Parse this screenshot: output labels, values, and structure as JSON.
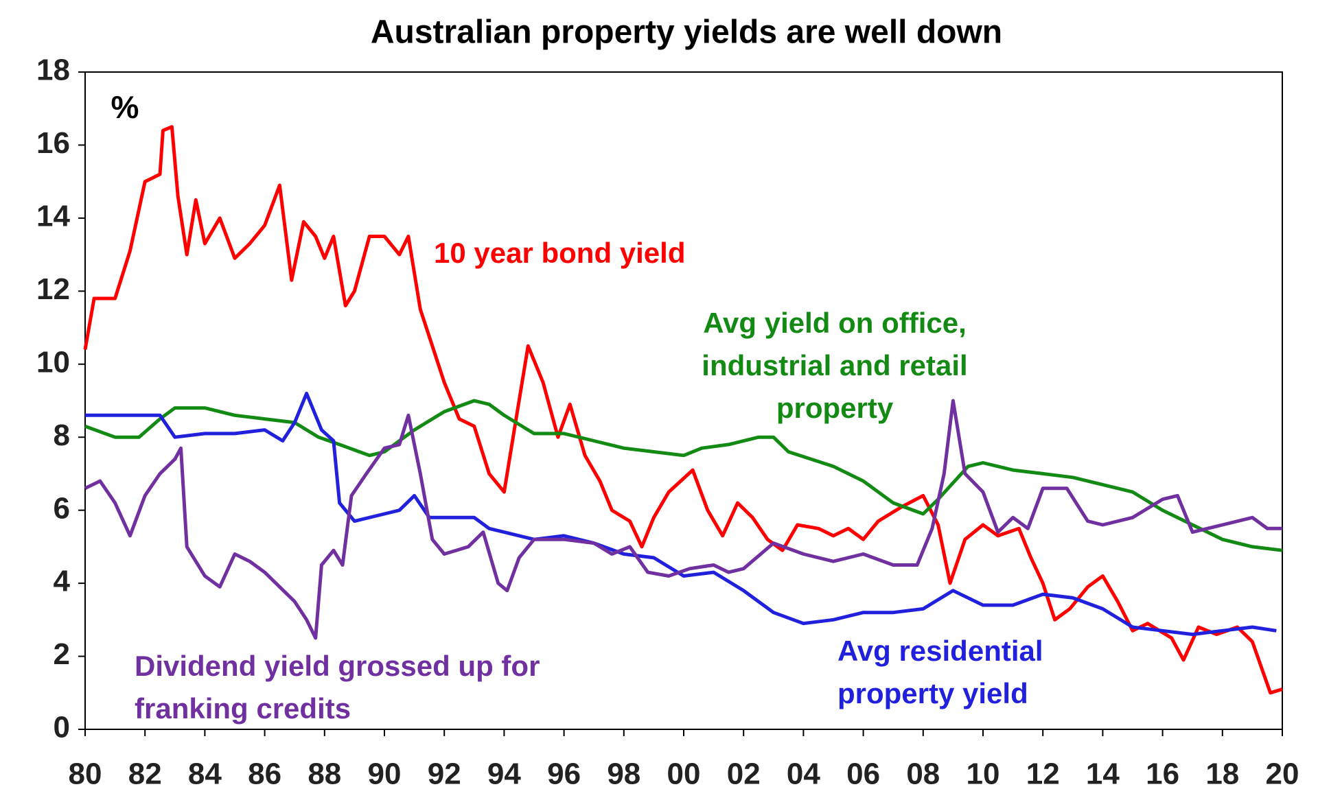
{
  "chart_data": {
    "type": "line",
    "title": "Australian property yields are well down",
    "ylabel": "%",
    "xlim": [
      1980,
      2020
    ],
    "xticks": [
      {
        "value": 1980,
        "label": "80"
      },
      {
        "value": 1982,
        "label": "82"
      },
      {
        "value": 1984,
        "label": "84"
      },
      {
        "value": 1986,
        "label": "86"
      },
      {
        "value": 1988,
        "label": "88"
      },
      {
        "value": 1990,
        "label": "90"
      },
      {
        "value": 1992,
        "label": "92"
      },
      {
        "value": 1994,
        "label": "94"
      },
      {
        "value": 1996,
        "label": "96"
      },
      {
        "value": 1998,
        "label": "98"
      },
      {
        "value": 2000,
        "label": "00"
      },
      {
        "value": 2002,
        "label": "02"
      },
      {
        "value": 2004,
        "label": "04"
      },
      {
        "value": 2006,
        "label": "06"
      },
      {
        "value": 2008,
        "label": "08"
      },
      {
        "value": 2010,
        "label": "10"
      },
      {
        "value": 2012,
        "label": "12"
      },
      {
        "value": 2014,
        "label": "14"
      },
      {
        "value": 2016,
        "label": "16"
      },
      {
        "value": 2018,
        "label": "18"
      },
      {
        "value": 2020,
        "label": "20"
      }
    ],
    "ylim": [
      0,
      18
    ],
    "yticks": [
      0,
      2,
      4,
      6,
      8,
      10,
      12,
      14,
      16,
      18
    ],
    "series": [
      {
        "name": "10 year bond yield",
        "color": "#ff0000",
        "x": [
          1980,
          1980.3,
          1981,
          1981.5,
          1982,
          1982.5,
          1982.6,
          1982.9,
          1983.1,
          1983.4,
          1983.7,
          1984,
          1984.5,
          1985,
          1985.5,
          1986,
          1986.5,
          1986.9,
          1987.3,
          1987.7,
          1988,
          1988.3,
          1988.7,
          1989,
          1989.5,
          1990,
          1990.5,
          1990.8,
          1991.2,
          1991.6,
          1992,
          1992.5,
          1993,
          1993.5,
          1994,
          1994.4,
          1994.8,
          1995.3,
          1995.8,
          1996.2,
          1996.7,
          1997.2,
          1997.6,
          1998.2,
          1998.6,
          1999,
          1999.5,
          2000.3,
          2000.8,
          2001.3,
          2001.8,
          2002.3,
          2002.8,
          2003.3,
          2003.8,
          2004.5,
          2005,
          2005.5,
          2006,
          2006.5,
          2007.3,
          2008,
          2008.5,
          2008.9,
          2009.4,
          2010,
          2010.5,
          2011.2,
          2011.6,
          2012,
          2012.4,
          2012.9,
          2013.5,
          2014,
          2014.5,
          2015,
          2015.5,
          2016.3,
          2016.7,
          2017.2,
          2017.8,
          2018.5,
          2019,
          2019.6,
          2020
        ],
        "values": [
          10.4,
          11.8,
          11.8,
          13.1,
          15,
          15.2,
          16.4,
          16.5,
          14.6,
          13,
          14.5,
          13.3,
          14,
          12.9,
          13.3,
          13.8,
          14.9,
          12.3,
          13.9,
          13.5,
          12.9,
          13.5,
          11.6,
          12,
          13.5,
          13.5,
          13,
          13.5,
          11.5,
          10.5,
          9.5,
          8.5,
          8.3,
          7,
          6.5,
          8.5,
          10.5,
          9.5,
          8,
          8.9,
          7.5,
          6.8,
          6,
          5.7,
          5,
          5.8,
          6.5,
          7.1,
          6,
          5.3,
          6.2,
          5.8,
          5.2,
          4.9,
          5.6,
          5.5,
          5.3,
          5.5,
          5.2,
          5.7,
          6.1,
          6.4,
          5.6,
          4,
          5.2,
          5.6,
          5.3,
          5.5,
          4.7,
          4,
          3,
          3.3,
          3.9,
          4.2,
          3.5,
          2.7,
          2.9,
          2.5,
          1.9,
          2.8,
          2.6,
          2.8,
          2.4,
          1,
          1.1
        ]
      },
      {
        "name": "Avg yield on office, industrial and retail property",
        "color": "#138a13",
        "x": [
          1980,
          1981,
          1981.8,
          1982.5,
          1983,
          1984,
          1985,
          1986,
          1987,
          1987.8,
          1988.5,
          1989.5,
          1990,
          1991,
          1992,
          1993,
          1993.5,
          1994,
          1995,
          1996,
          1997,
          1998,
          1999,
          2000,
          2000.6,
          2001.5,
          2002.5,
          2003,
          2003.5,
          2005,
          2006,
          2007,
          2008,
          2008.5,
          2009.5,
          2010,
          2011,
          2012,
          2013,
          2014,
          2015,
          2016,
          2017,
          2018,
          2019,
          2020
        ],
        "values": [
          8.3,
          8,
          8,
          8.5,
          8.8,
          8.8,
          8.6,
          8.5,
          8.4,
          8,
          7.8,
          7.5,
          7.6,
          8.2,
          8.7,
          9,
          8.9,
          8.6,
          8.1,
          8.1,
          7.9,
          7.7,
          7.6,
          7.5,
          7.7,
          7.8,
          8,
          8,
          7.6,
          7.2,
          6.8,
          6.2,
          5.9,
          6.3,
          7.2,
          7.3,
          7.1,
          7,
          6.9,
          6.7,
          6.5,
          6,
          5.6,
          5.2,
          5,
          4.9
        ]
      },
      {
        "name": "Avg residential property yield",
        "color": "#2121dd",
        "x": [
          1980,
          1982.5,
          1983,
          1984,
          1985,
          1986,
          1986.6,
          1987,
          1987.4,
          1987.9,
          1988.3,
          1988.5,
          1989,
          1990,
          1990.5,
          1991,
          1991.5,
          1992,
          1993,
          1993.5,
          1994,
          1995,
          1996,
          1997,
          1998,
          1999,
          2000,
          2001,
          2002,
          2003,
          2004,
          2005,
          2006,
          2007,
          2008,
          2009,
          2010,
          2011,
          2012,
          2013,
          2014,
          2015,
          2016,
          2017,
          2018,
          2019,
          2019.8
        ],
        "values": [
          8.6,
          8.6,
          8,
          8.1,
          8.1,
          8.2,
          7.9,
          8.4,
          9.2,
          8.2,
          7.9,
          6.2,
          5.7,
          5.9,
          6,
          6.4,
          5.8,
          5.8,
          5.8,
          5.5,
          5.4,
          5.2,
          5.3,
          5.1,
          4.8,
          4.7,
          4.2,
          4.3,
          3.8,
          3.2,
          2.9,
          3,
          3.2,
          3.2,
          3.3,
          3.8,
          3.4,
          3.4,
          3.7,
          3.6,
          3.3,
          2.8,
          2.7,
          2.6,
          2.7,
          2.8,
          2.7
        ]
      },
      {
        "name": "Dividend yield grossed up for franking credits",
        "color": "#7030a0",
        "x": [
          1980,
          1980.5,
          1981,
          1981.5,
          1982,
          1982.5,
          1983,
          1983.2,
          1983.4,
          1984,
          1984.5,
          1985,
          1985.5,
          1986,
          1986.5,
          1987,
          1987.4,
          1987.7,
          1987.9,
          1988.3,
          1988.6,
          1988.9,
          1989.4,
          1990,
          1990.5,
          1990.8,
          1991.2,
          1991.6,
          1992,
          1992.8,
          1993.3,
          1993.8,
          1994.1,
          1994.5,
          1995,
          1996,
          1997,
          1997.6,
          1998.2,
          1998.8,
          1999.5,
          2000.2,
          2001,
          2001.5,
          2002,
          2003,
          2004,
          2005,
          2006,
          2007,
          2007.8,
          2008.3,
          2008.7,
          2009,
          2009.4,
          2010,
          2010.5,
          2011,
          2011.5,
          2012,
          2012.8,
          2013.5,
          2014,
          2015,
          2016,
          2016.5,
          2017,
          2018,
          2019,
          2019.5,
          2020
        ],
        "values": [
          6.6,
          6.8,
          6.2,
          5.3,
          6.4,
          7,
          7.4,
          7.7,
          5,
          4.2,
          3.9,
          4.8,
          4.6,
          4.3,
          3.9,
          3.5,
          3,
          2.5,
          4.5,
          4.9,
          4.5,
          6.4,
          7,
          7.7,
          7.8,
          8.6,
          7,
          5.2,
          4.8,
          5,
          5.4,
          4,
          3.8,
          4.7,
          5.2,
          5.2,
          5.1,
          4.8,
          5,
          4.3,
          4.2,
          4.4,
          4.5,
          4.3,
          4.4,
          5.1,
          4.8,
          4.6,
          4.8,
          4.5,
          4.5,
          5.5,
          7,
          9,
          7,
          6.5,
          5.4,
          5.8,
          5.5,
          6.6,
          6.6,
          5.7,
          5.6,
          5.8,
          6.3,
          6.4,
          5.4,
          5.6,
          5.8,
          5.5,
          5.5
        ]
      }
    ]
  }
}
